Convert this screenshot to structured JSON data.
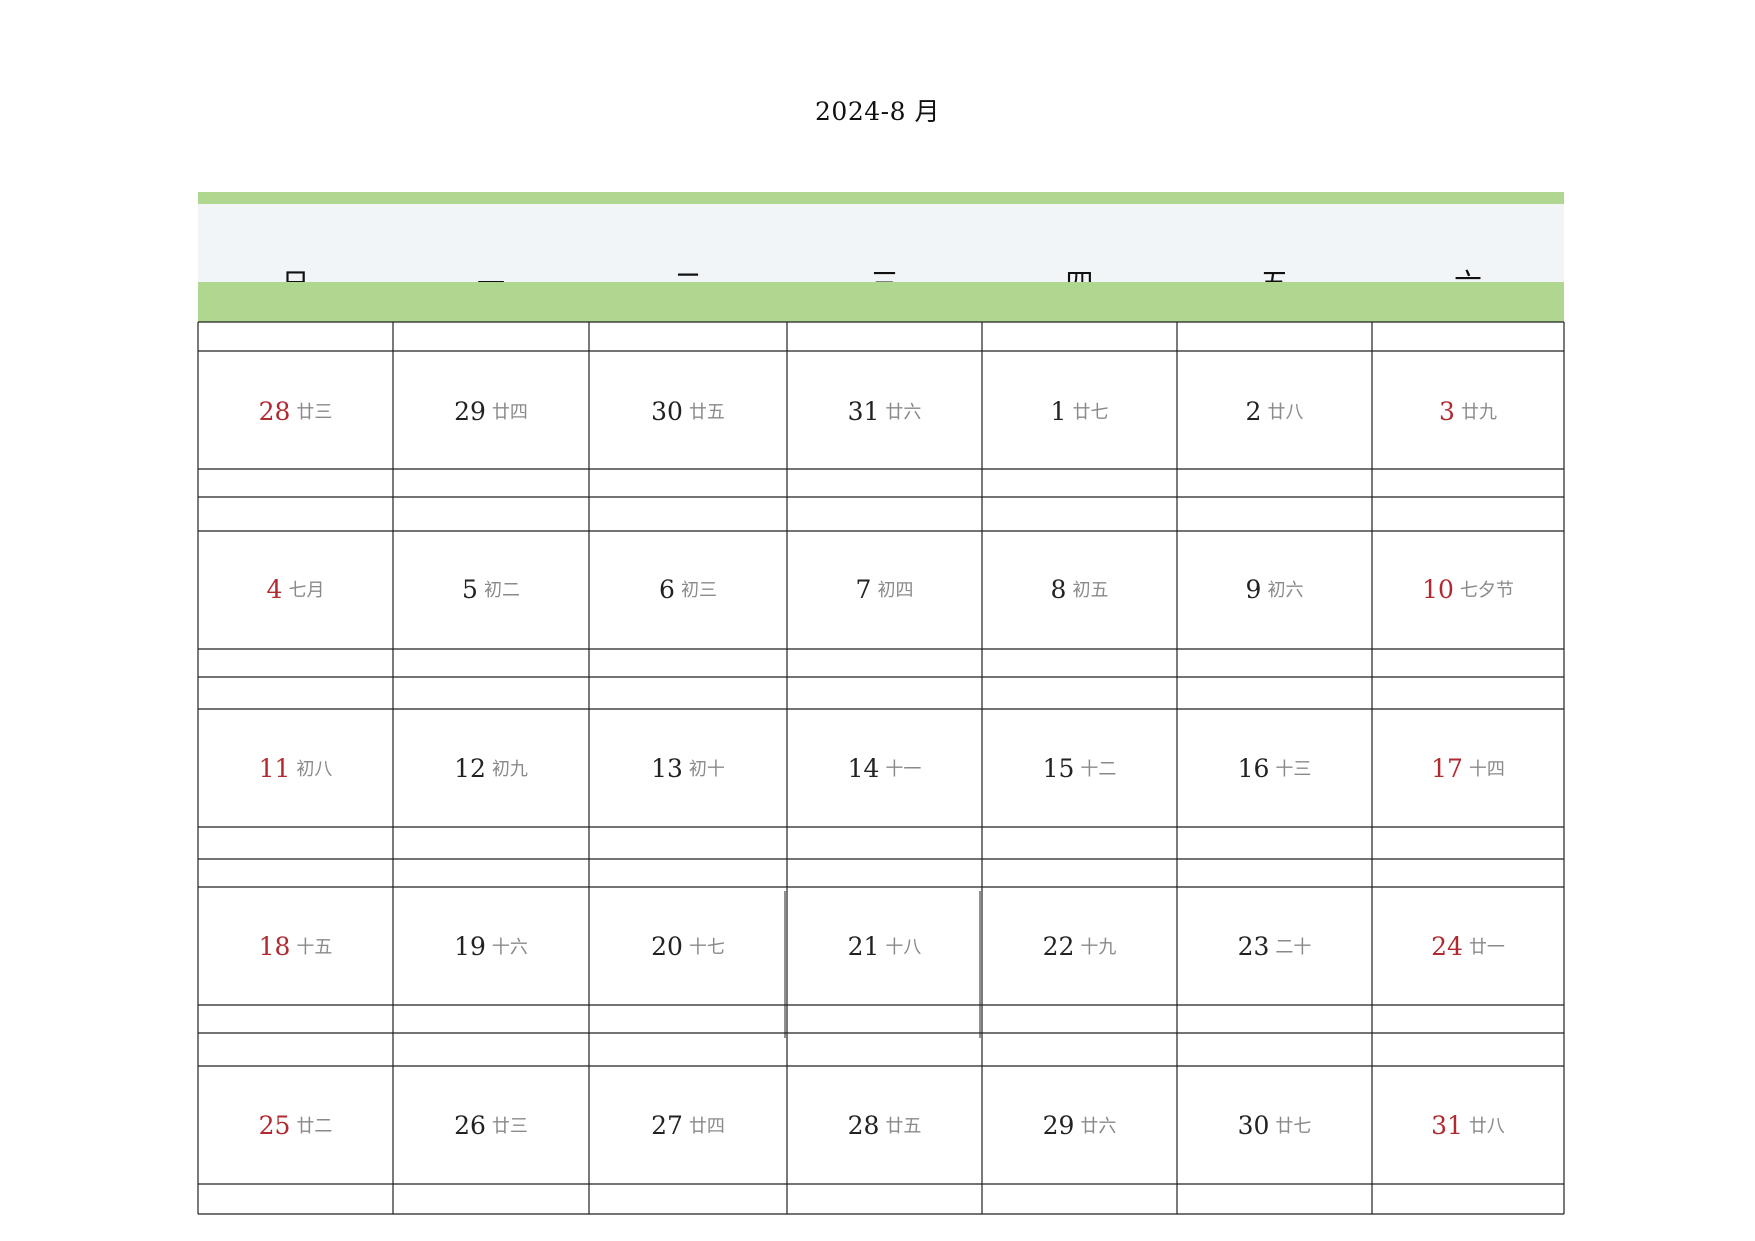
{
  "title": "2024-8 月",
  "colors": {
    "green": "#b0d78f",
    "header_bg": "#f2f5f7",
    "weekend_red": "#b02a30",
    "lunar_gray": "#8a8a8a"
  },
  "weekdays": [
    "日",
    "一",
    "二",
    "三",
    "四",
    "五",
    "六"
  ],
  "weeks": [
    [
      {
        "day": "28",
        "lunar": "廿三",
        "red": true
      },
      {
        "day": "29",
        "lunar": "廿四",
        "red": false
      },
      {
        "day": "30",
        "lunar": "廿五",
        "red": false
      },
      {
        "day": "31",
        "lunar": "廿六",
        "red": false
      },
      {
        "day": "1",
        "lunar": "廿七",
        "red": false
      },
      {
        "day": "2",
        "lunar": "廿八",
        "red": false
      },
      {
        "day": "3",
        "lunar": "廿九",
        "red": true
      }
    ],
    [
      {
        "day": "4",
        "lunar": "七月",
        "red": true
      },
      {
        "day": "5",
        "lunar": "初二",
        "red": false
      },
      {
        "day": "6",
        "lunar": "初三",
        "red": false
      },
      {
        "day": "7",
        "lunar": "初四",
        "red": false
      },
      {
        "day": "8",
        "lunar": "初五",
        "red": false
      },
      {
        "day": "9",
        "lunar": "初六",
        "red": false
      },
      {
        "day": "10",
        "lunar": "七夕节",
        "red": true
      }
    ],
    [
      {
        "day": "11",
        "lunar": "初八",
        "red": true
      },
      {
        "day": "12",
        "lunar": "初九",
        "red": false
      },
      {
        "day": "13",
        "lunar": "初十",
        "red": false
      },
      {
        "day": "14",
        "lunar": "十一",
        "red": false
      },
      {
        "day": "15",
        "lunar": "十二",
        "red": false
      },
      {
        "day": "16",
        "lunar": "十三",
        "red": false
      },
      {
        "day": "17",
        "lunar": "十四",
        "red": true
      }
    ],
    [
      {
        "day": "18",
        "lunar": "十五",
        "red": true
      },
      {
        "day": "19",
        "lunar": "十六",
        "red": false
      },
      {
        "day": "20",
        "lunar": "十七",
        "red": false
      },
      {
        "day": "21",
        "lunar": "十八",
        "red": false
      },
      {
        "day": "22",
        "lunar": "十九",
        "red": false
      },
      {
        "day": "23",
        "lunar": "二十",
        "red": false
      },
      {
        "day": "24",
        "lunar": "廿一",
        "red": true
      }
    ],
    [
      {
        "day": "25",
        "lunar": "廿二",
        "red": true
      },
      {
        "day": "26",
        "lunar": "廿三",
        "red": false
      },
      {
        "day": "27",
        "lunar": "廿四",
        "red": false
      },
      {
        "day": "28",
        "lunar": "廿五",
        "red": false
      },
      {
        "day": "29",
        "lunar": "廿六",
        "red": false
      },
      {
        "day": "30",
        "lunar": "廿七",
        "red": false
      },
      {
        "day": "31",
        "lunar": "廿八",
        "red": true
      }
    ]
  ]
}
